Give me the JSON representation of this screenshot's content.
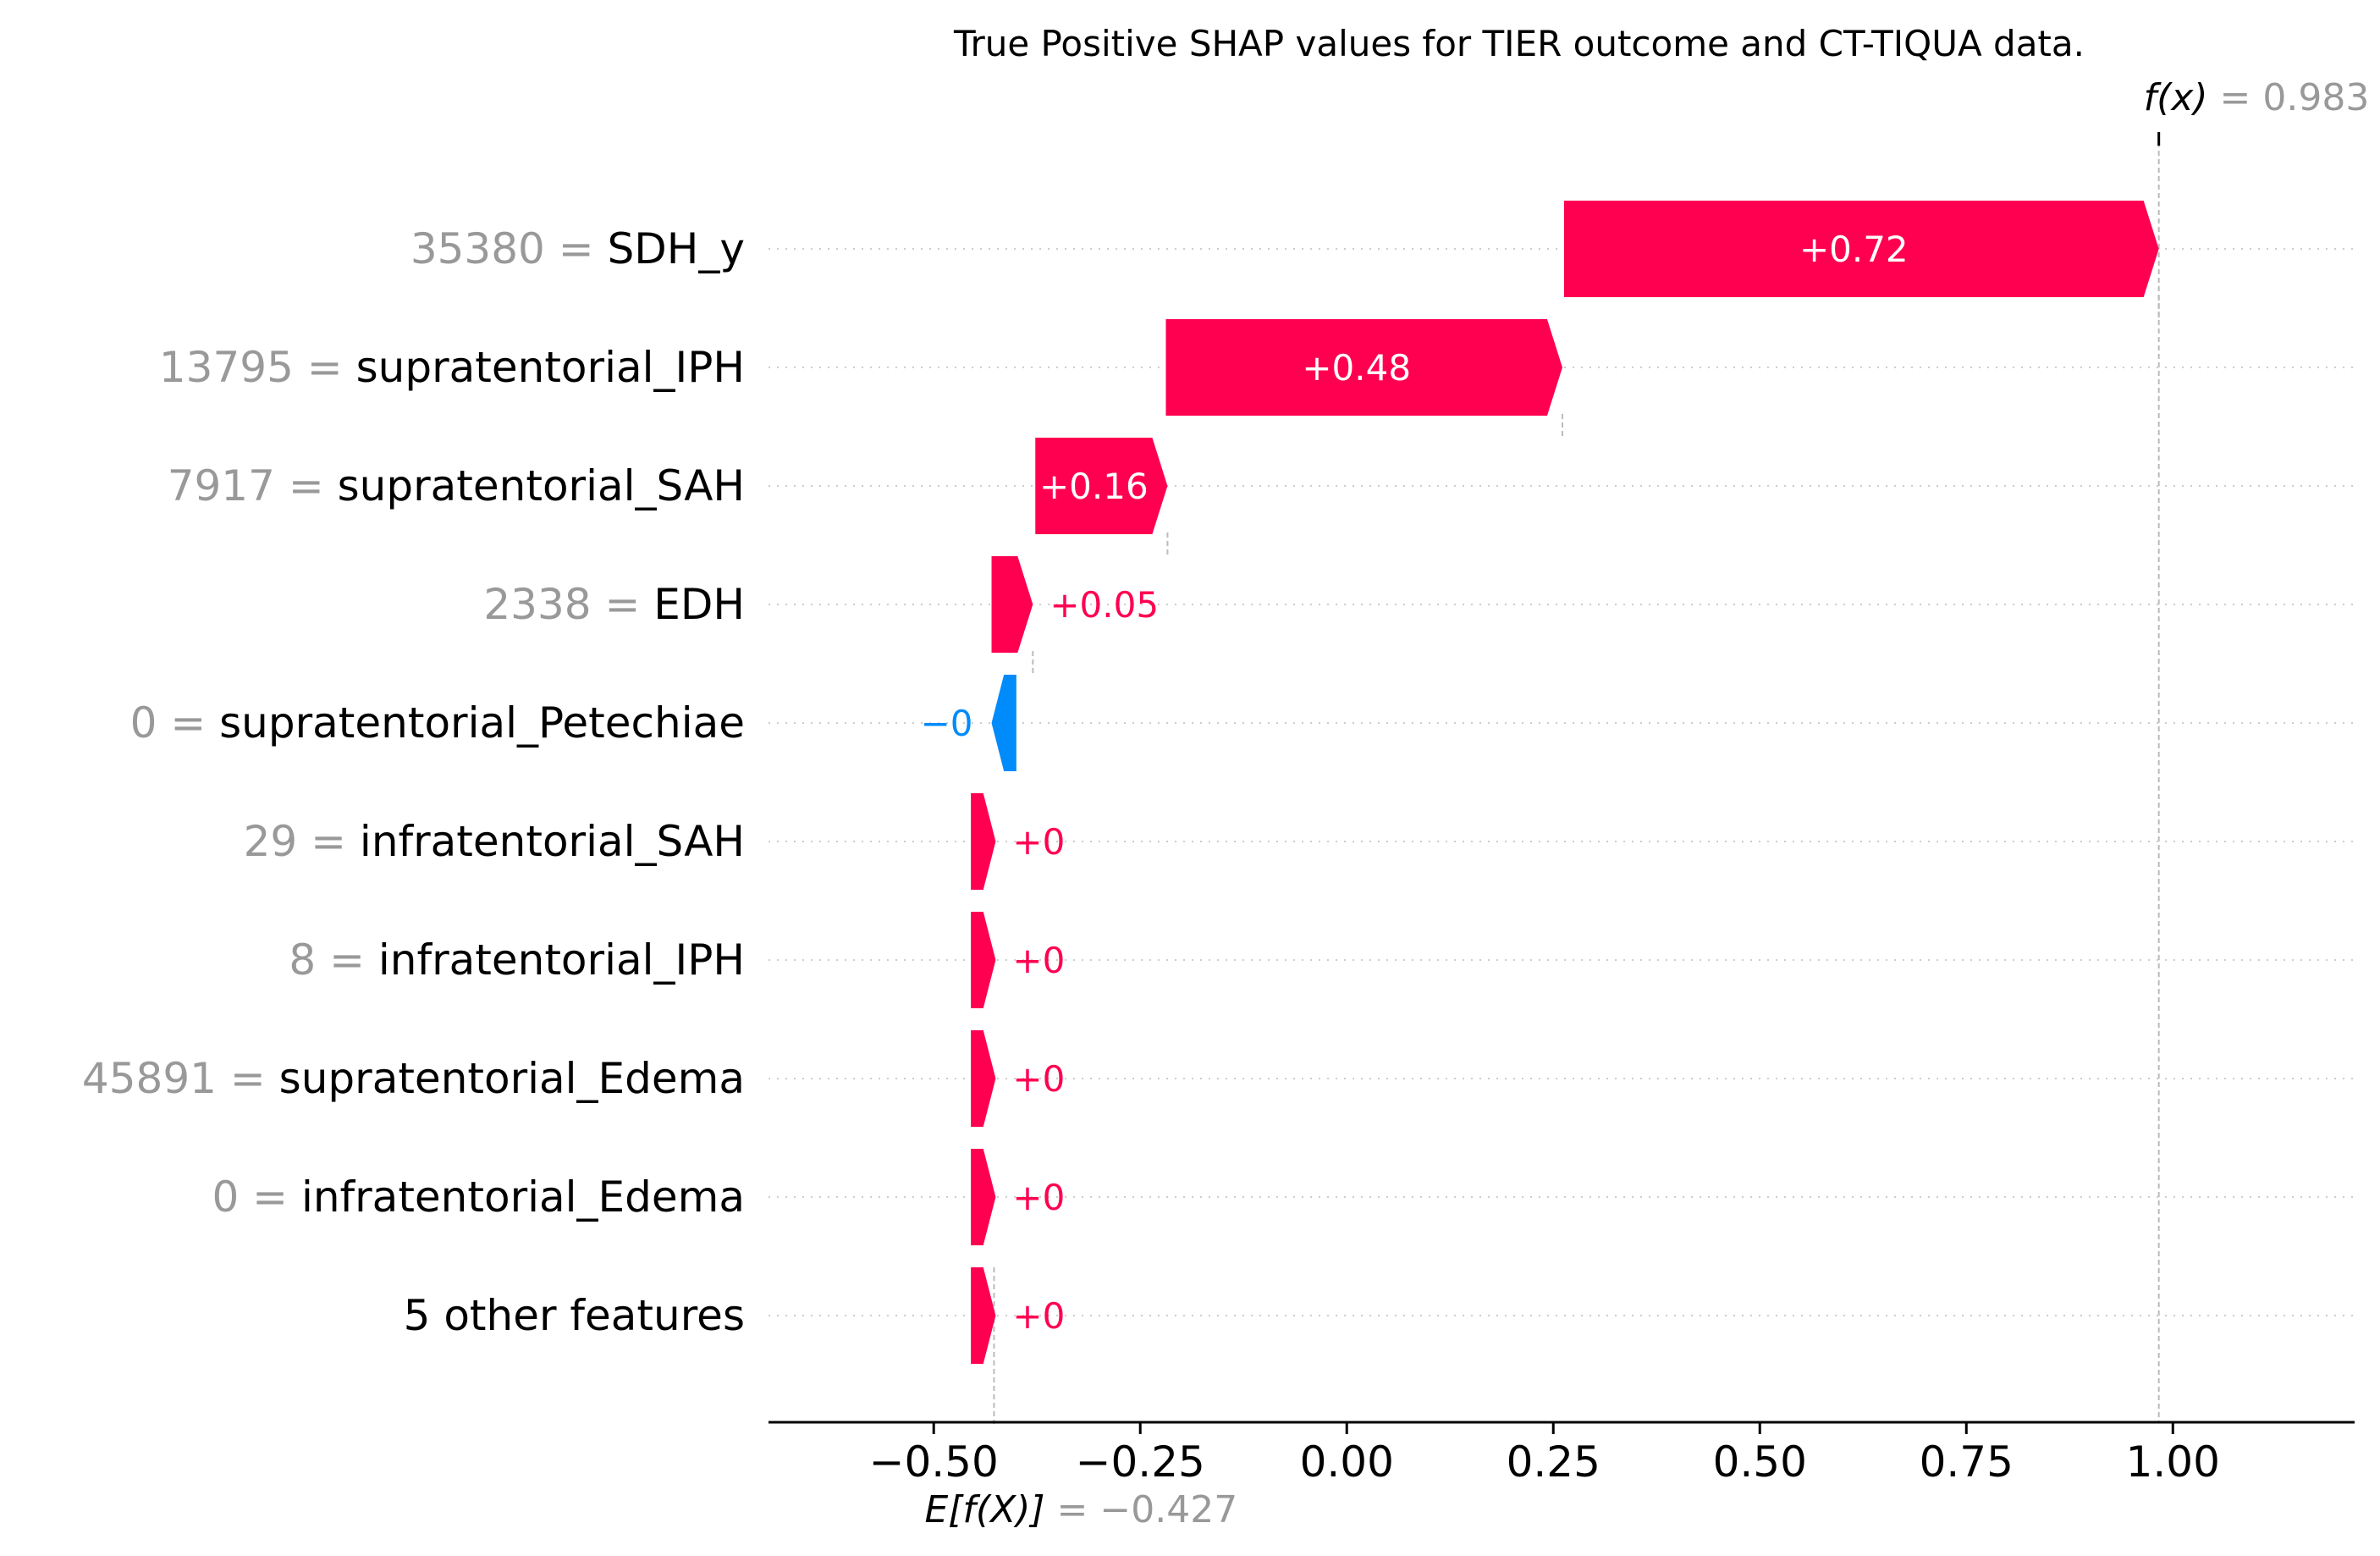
{
  "chart_data": {
    "type": "waterfall",
    "title": "True Positive SHAP values for TIER outcome and CT-TIQUA data.",
    "xlabel": "",
    "ylabel": "",
    "xlim": [
      -0.7,
      1.22
    ],
    "xticks": [
      -0.5,
      -0.25,
      0.0,
      0.25,
      0.5,
      0.75,
      1.0
    ],
    "xtick_labels": [
      "−0.50",
      "−0.25",
      "0.00",
      "0.25",
      "0.50",
      "0.75",
      "1.00"
    ],
    "base_value": -0.427,
    "base_label_name": "E[f(X)]",
    "base_label_value": "= −0.427",
    "output_value": 0.983,
    "output_label_name": "f(x)",
    "output_label_value": "= 0.983",
    "features": [
      {
        "value_text": "35380 =",
        "name": "SDH_y",
        "shap": 0.72,
        "label": "+0.72",
        "start": 0.263
      },
      {
        "value_text": "13795 =",
        "name": "supratentorial_IPH",
        "shap": 0.48,
        "label": "+0.48",
        "start": -0.219
      },
      {
        "value_text": "7917 =",
        "name": "supratentorial_SAH",
        "shap": 0.16,
        "label": "+0.16",
        "start": -0.377
      },
      {
        "value_text": "2338 =",
        "name": "EDH",
        "shap": 0.05,
        "label": "+0.05",
        "start": -0.43
      },
      {
        "value_text": "0 =",
        "name": "supratentorial_Petechiae",
        "shap": -0.03,
        "label": "−0",
        "start": -0.4
      },
      {
        "value_text": "29 =",
        "name": "infratentorial_SAH",
        "shap": 0.03,
        "label": "+0",
        "start": -0.455
      },
      {
        "value_text": "8 =",
        "name": "infratentorial_IPH",
        "shap": 0.03,
        "label": "+0",
        "start": -0.455
      },
      {
        "value_text": "45891 =",
        "name": "supratentorial_Edema",
        "shap": 0.03,
        "label": "+0",
        "start": -0.455
      },
      {
        "value_text": "0 =",
        "name": "infratentorial_Edema",
        "shap": 0.03,
        "label": "+0",
        "start": -0.455
      },
      {
        "value_text": "",
        "name": "5 other features",
        "shap": 0.03,
        "label": "+0",
        "start": -0.455
      }
    ],
    "colors": {
      "positive": "#ff0051",
      "negative": "#008bfb",
      "text": "#000000",
      "muted": "#999999",
      "gridline": "#cccccc",
      "bar_text_inside": "#ffffff"
    }
  }
}
